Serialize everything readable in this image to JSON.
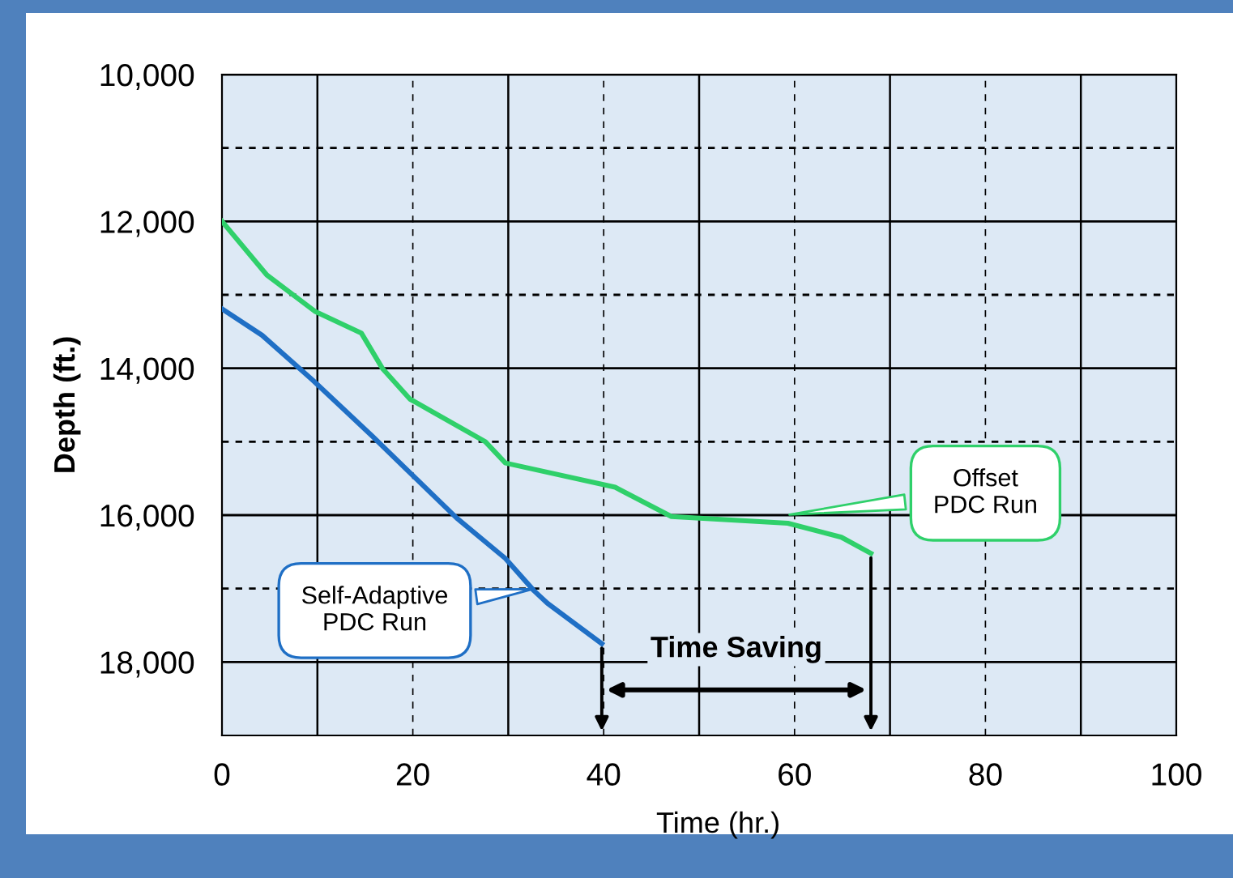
{
  "chart_data": {
    "type": "line",
    "xlabel": "Time (hr.)",
    "ylabel": "Depth (ft.)",
    "xlim": [
      0,
      100
    ],
    "ylim": [
      19000,
      10000
    ],
    "xticks": [
      0,
      {
        "value": 10,
        "label": null
      },
      20,
      {
        "value": 30,
        "label": null
      },
      40,
      {
        "value": 50,
        "label": null
      },
      60,
      {
        "value": 70,
        "label": null
      },
      80,
      {
        "value": 90,
        "label": null
      },
      100
    ],
    "yticks": [
      {
        "value": 10000,
        "label": "10,000"
      },
      {
        "value": 11000,
        "label": null
      },
      {
        "value": 12000,
        "label": "12,000"
      },
      {
        "value": 13000,
        "label": null
      },
      {
        "value": 14000,
        "label": "14,000"
      },
      {
        "value": 15000,
        "label": null
      },
      {
        "value": 16000,
        "label": "16,000"
      },
      {
        "value": 17000,
        "label": null
      },
      {
        "value": 18000,
        "label": "18,000"
      }
    ],
    "grid": true,
    "marker": "none",
    "line_style": "solid",
    "series": [
      {
        "color": "#1f6fc5",
        "x": [
          0,
          4.2,
          9.5,
          15.8,
          24.6,
          29.7,
          32.7,
          34.1,
          39.8
        ],
        "values": [
          13190,
          13550,
          14160,
          14930,
          16040,
          16590,
          17030,
          17200,
          17750
        ]
      },
      {
        "color": "#2fd06a",
        "x": [
          0,
          4.7,
          9.8,
          14.6,
          16.8,
          19.7,
          27.6,
          29.7,
          41.2,
          47.1,
          59.3,
          64.9,
          68
        ],
        "values": [
          12000,
          12730,
          13230,
          13520,
          14000,
          14420,
          15000,
          15290,
          15620,
          16020,
          16110,
          16300,
          16520
        ]
      }
    ],
    "annotations": [
      {
        "text": "Self-Adaptive\nPDC Run",
        "x": 33,
        "y": 17000
      },
      {
        "text": "Offset\nPDC Run",
        "x": 59,
        "y": 16000
      },
      "Time Saving"
    ]
  }
}
